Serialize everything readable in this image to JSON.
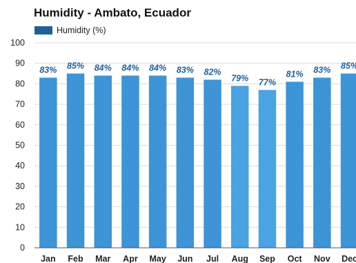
{
  "chart_data": {
    "type": "bar",
    "title": "Humidity - Ambato, Ecuador",
    "legend": {
      "label": "Humidity (%)",
      "placement": "top-left"
    },
    "categories": [
      "Jan",
      "Feb",
      "Mar",
      "Apr",
      "May",
      "Jun",
      "Jul",
      "Aug",
      "Sep",
      "Oct",
      "Nov",
      "Dec"
    ],
    "series": [
      {
        "name": "Humidity (%)",
        "values": [
          83,
          85,
          84,
          84,
          84,
          83,
          82,
          79,
          77,
          81,
          83,
          85
        ]
      }
    ],
    "data_labels": [
      "83%",
      "85%",
      "84%",
      "84%",
      "84%",
      "83%",
      "82%",
      "79%",
      "77%",
      "81%",
      "83%",
      "85%"
    ],
    "ylim": [
      0,
      100
    ],
    "yticks": [
      0,
      10,
      20,
      30,
      40,
      50,
      60,
      70,
      80,
      90,
      100
    ],
    "grid": true
  },
  "colors": {
    "bar": "#3d94d6",
    "bar_highlight": "#4aa3e2",
    "legend_swatch": "#1f5fa0",
    "data_label": "#1f5fa0",
    "grid": "#dcdcdc",
    "axis_text": "#222222",
    "baseline": "#555555"
  }
}
